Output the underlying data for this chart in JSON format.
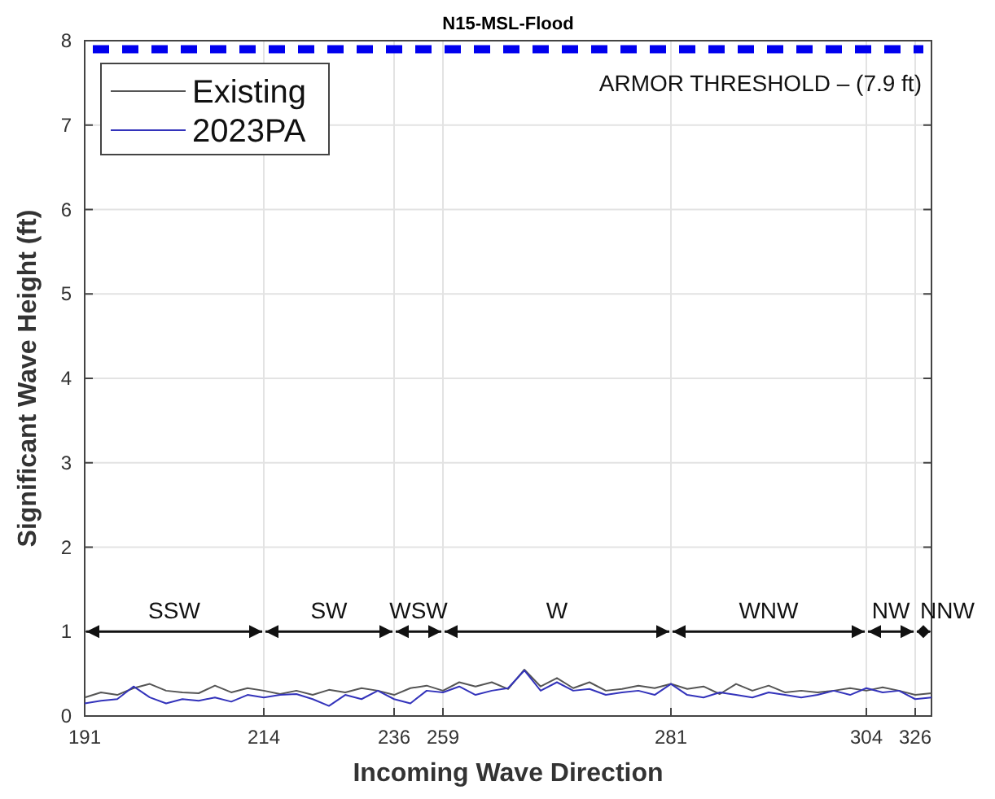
{
  "chart_data": {
    "type": "line",
    "title": "N15-MSL-Flood",
    "xlabel": "Incoming Wave Direction",
    "ylabel": "Significant Wave Height (ft)",
    "categories": [
      "191",
      null,
      null,
      null,
      null,
      null,
      null,
      null,
      null,
      null,
      null,
      "214",
      null,
      null,
      null,
      null,
      null,
      null,
      null,
      "236",
      null,
      null,
      "259",
      null,
      null,
      null,
      null,
      null,
      null,
      null,
      null,
      null,
      null,
      null,
      null,
      null,
      "281",
      null,
      null,
      null,
      null,
      null,
      null,
      null,
      null,
      null,
      null,
      null,
      "304",
      null,
      null,
      "326",
      null
    ],
    "series": [
      {
        "name": "Existing",
        "color": "#555555",
        "values": [
          0.22,
          0.28,
          0.25,
          0.33,
          0.38,
          0.3,
          0.28,
          0.27,
          0.36,
          0.28,
          0.33,
          0.3,
          0.26,
          0.3,
          0.25,
          0.31,
          0.28,
          0.33,
          0.3,
          0.25,
          0.33,
          0.36,
          0.3,
          0.4,
          0.35,
          0.4,
          0.32,
          0.55,
          0.35,
          0.45,
          0.33,
          0.4,
          0.3,
          0.32,
          0.36,
          0.33,
          0.38,
          0.32,
          0.35,
          0.26,
          0.38,
          0.3,
          0.36,
          0.28,
          0.3,
          0.28,
          0.3,
          0.33,
          0.3,
          0.34,
          0.3,
          0.25,
          0.27
        ]
      },
      {
        "name": "2023PA",
        "color": "#3333bb",
        "values": [
          0.15,
          0.18,
          0.2,
          0.35,
          0.22,
          0.15,
          0.2,
          0.18,
          0.22,
          0.17,
          0.25,
          0.22,
          0.25,
          0.26,
          0.2,
          0.12,
          0.25,
          0.2,
          0.3,
          0.2,
          0.15,
          0.3,
          0.28,
          0.35,
          0.25,
          0.3,
          0.33,
          0.54,
          0.3,
          0.4,
          0.3,
          0.32,
          0.25,
          0.28,
          0.3,
          0.25,
          0.38,
          0.25,
          0.22,
          0.28,
          0.25,
          0.22,
          0.28,
          0.25,
          0.22,
          0.25,
          0.3,
          0.25,
          0.33,
          0.28,
          0.3,
          0.2,
          0.22
        ]
      }
    ],
    "ylim": [
      0,
      8
    ],
    "yticks": [
      0,
      1,
      2,
      3,
      4,
      5,
      6,
      7,
      8
    ],
    "grid": true,
    "legend": "top left",
    "line_style": "solid",
    "marker": "none",
    "ref_lines": [
      {
        "axis": "y",
        "value": 7.9,
        "label": "ARMOR THRESHOLD – (7.9 ft)",
        "color": "#0000ee",
        "line_style": "dashed"
      }
    ],
    "annotations": [
      "SSW",
      "SW",
      "WSW",
      "W",
      "WNW",
      "NW",
      "NNW"
    ]
  }
}
